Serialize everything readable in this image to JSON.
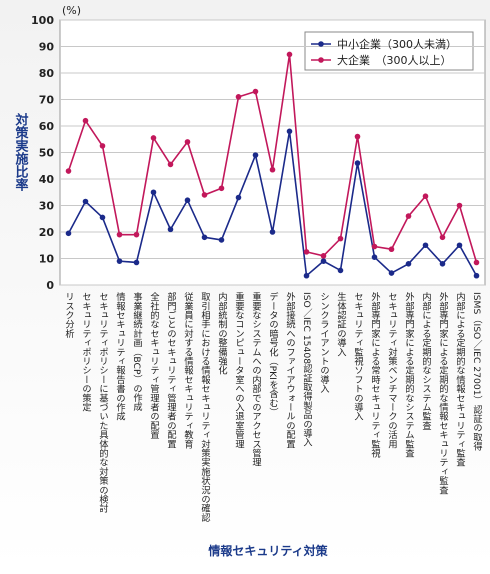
{
  "chart_data": {
    "type": "line",
    "y_label": "対策実施比率",
    "y_unit": "(%)",
    "x_label": "情報セキュリティ対策",
    "categories": [
      "リスク分析",
      "セキュリティポリシーの策定",
      "セキュリティポリシーに基づいた具体的な対策の検討",
      "情報セキュリティ報告書の作成",
      "事業継続計画（BCP）の作成",
      "全社的なセキュリティ管理者の配置",
      "部門ごとのセキュリティ管理者の配置",
      "従業員に対する情報セキュリティ教育",
      "取引相手における情報セキュリティ対策実施状況の確認",
      "内部統制の整備強化",
      "重要なコンピュータ室への入退室管理",
      "重要なシステムへの内部でのアクセス管理",
      "データの暗号化（PKIを含む）",
      "外部接続へのファイアウォールの配置",
      "ISO／IEC 15408認証取得製品の導入",
      "シンクライアントの導入",
      "生体認証の導入",
      "セキュリティ監視ソフトの導入",
      "外部専門家による常時セキュリティ監視",
      "セキュリティ対策ベンチマークの活用",
      "外部専門家による定期的なシステム監査",
      "内部による定期的なシステム監査",
      "外部専門家による定期的な情報セキュリティ監査",
      "内部による定期的な情報セキュリティ監査",
      "ISMS（ISO／IEC 27001）認証の取得"
    ],
    "series": [
      {
        "name": "中小企業（300人未満）",
        "color": "#1b2a8a",
        "values": [
          19.5,
          31.5,
          25.5,
          9,
          8.5,
          35,
          21,
          32,
          18,
          17,
          33,
          49,
          20,
          58,
          3.5,
          9,
          5.5,
          46,
          10.5,
          4.5,
          8,
          15,
          8,
          15,
          3.5
        ]
      },
      {
        "name": "大企業　（300人以上）",
        "color": "#c2185b",
        "values": [
          43,
          62,
          52.5,
          19,
          19,
          55.5,
          45.5,
          54,
          34,
          36.5,
          71,
          73,
          43.5,
          87,
          12.5,
          11,
          17.5,
          56,
          14.5,
          13.5,
          26,
          33.5,
          18,
          30,
          8.5
        ]
      }
    ],
    "ylim": [
      0,
      100
    ],
    "yticks": [
      0,
      10,
      20,
      30,
      40,
      50,
      60,
      70,
      80,
      90,
      100
    ],
    "grid": true,
    "legend": "upper right"
  }
}
